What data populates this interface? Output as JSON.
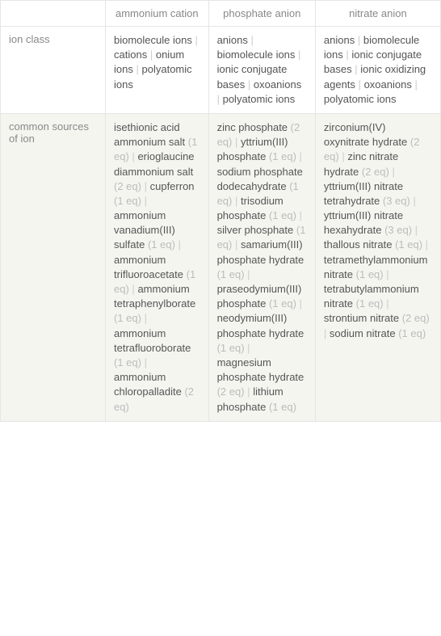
{
  "columns": [
    "",
    "ammonium cation",
    "phosphate anion",
    "nitrate anion"
  ],
  "rows": [
    {
      "label": "ion class",
      "shaded": false,
      "cells": [
        [
          {
            "text": "biomolecule ions",
            "eq": null
          },
          {
            "text": "cations",
            "eq": null
          },
          {
            "text": "onium ions",
            "eq": null
          },
          {
            "text": "polyatomic ions",
            "eq": null
          }
        ],
        [
          {
            "text": "anions",
            "eq": null
          },
          {
            "text": "biomolecule ions",
            "eq": null
          },
          {
            "text": "ionic conjugate bases",
            "eq": null
          },
          {
            "text": "oxoanions",
            "eq": null
          },
          {
            "text": "polyatomic ions",
            "eq": null
          }
        ],
        [
          {
            "text": "anions",
            "eq": null
          },
          {
            "text": "biomolecule ions",
            "eq": null
          },
          {
            "text": "ionic conjugate bases",
            "eq": null
          },
          {
            "text": "ionic oxidizing agents",
            "eq": null
          },
          {
            "text": "oxoanions",
            "eq": null
          },
          {
            "text": "polyatomic ions",
            "eq": null
          }
        ]
      ]
    },
    {
      "label": "common sources of ion",
      "shaded": true,
      "cells": [
        [
          {
            "text": "isethionic acid ammonium salt",
            "eq": "(1 eq)"
          },
          {
            "text": "erioglaucine diammonium salt",
            "eq": "(2 eq)"
          },
          {
            "text": "cupferron",
            "eq": "(1 eq)"
          },
          {
            "text": "ammonium vanadium(III) sulfate",
            "eq": "(1 eq)"
          },
          {
            "text": "ammonium trifluoroacetate",
            "eq": "(1 eq)"
          },
          {
            "text": "ammonium tetraphenylborate",
            "eq": "(1 eq)"
          },
          {
            "text": "ammonium tetrafluoroborate",
            "eq": "(1 eq)"
          },
          {
            "text": "ammonium chloropalladite",
            "eq": "(2 eq)"
          }
        ],
        [
          {
            "text": "zinc phosphate",
            "eq": "(2 eq)"
          },
          {
            "text": "yttrium(III) phosphate",
            "eq": "(1 eq)"
          },
          {
            "text": "sodium phosphate dodecahydrate",
            "eq": "(1 eq)"
          },
          {
            "text": "trisodium phosphate",
            "eq": "(1 eq)"
          },
          {
            "text": "silver phosphate",
            "eq": "(1 eq)"
          },
          {
            "text": "samarium(III) phosphate hydrate",
            "eq": "(1 eq)"
          },
          {
            "text": "praseodymium(III) phosphate",
            "eq": "(1 eq)"
          },
          {
            "text": "neodymium(III) phosphate hydrate",
            "eq": "(1 eq)"
          },
          {
            "text": "magnesium phosphate hydrate",
            "eq": "(2 eq)"
          },
          {
            "text": "lithium phosphate",
            "eq": "(1 eq)"
          }
        ],
        [
          {
            "text": "zirconium(IV) oxynitrate hydrate",
            "eq": "(2 eq)"
          },
          {
            "text": "zinc nitrate hydrate",
            "eq": "(2 eq)"
          },
          {
            "text": "yttrium(III) nitrate tetrahydrate",
            "eq": "(3 eq)"
          },
          {
            "text": "yttrium(III) nitrate hexahydrate",
            "eq": "(3 eq)"
          },
          {
            "text": "thallous nitrate",
            "eq": "(1 eq)"
          },
          {
            "text": "tetramethylammonium nitrate",
            "eq": "(1 eq)"
          },
          {
            "text": "tetrabutylammonium nitrate",
            "eq": "(1 eq)"
          },
          {
            "text": "strontium nitrate",
            "eq": "(2 eq)"
          },
          {
            "text": "sodium nitrate",
            "eq": "(1 eq)"
          }
        ]
      ]
    }
  ]
}
